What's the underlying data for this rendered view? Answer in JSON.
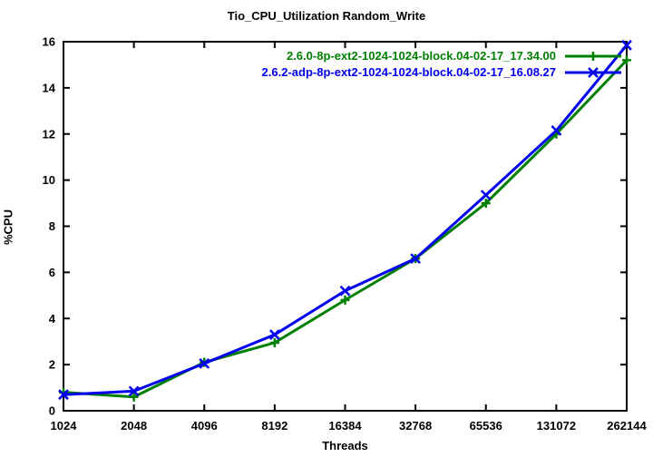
{
  "window": {
    "background": "#ffffff",
    "text_color": "#000000"
  },
  "chart_data": {
    "type": "line",
    "title": "Tio_CPU_Utilization Random_Write",
    "xlabel": "Threads",
    "ylabel": "%CPU",
    "x_scale": "log2",
    "categories": [
      "1024",
      "2048",
      "4096",
      "8192",
      "16384",
      "32768",
      "65536",
      "131072",
      "262144"
    ],
    "yticks": [
      "0",
      "2",
      "4",
      "6",
      "8",
      "10",
      "12",
      "14",
      "16"
    ],
    "ylim": [
      0,
      16
    ],
    "grid": false,
    "legend_position": "top-right-inside",
    "axis_color": "#000000",
    "series": [
      {
        "name": "2.6.0-8p-ext2-1024-1024-block.04-02-17_17.34.00",
        "color": "#008000",
        "marker": "plus",
        "values": [
          0.8,
          0.6,
          2.1,
          2.95,
          4.8,
          6.6,
          9.0,
          12.0,
          15.2
        ]
      },
      {
        "name": "2.6.2-adp-8p-ext2-1024-1024-block.04-02-17_16.08.27",
        "color": "#0000ee",
        "marker": "cross",
        "values": [
          0.7,
          0.85,
          2.05,
          3.3,
          5.2,
          6.6,
          9.35,
          12.15,
          15.85
        ]
      }
    ]
  }
}
